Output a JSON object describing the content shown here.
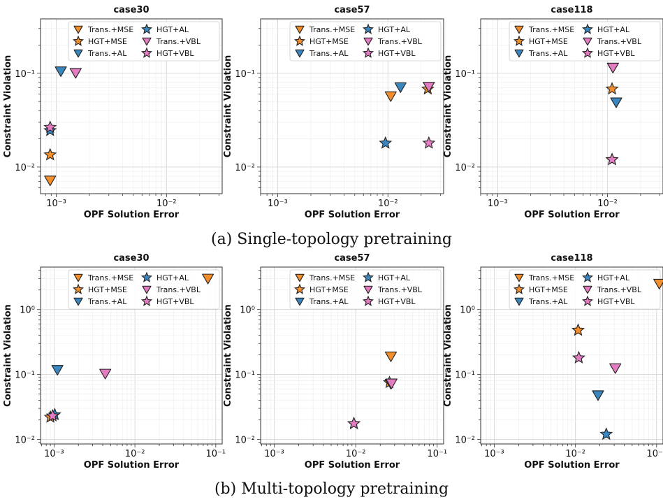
{
  "captions": {
    "a": "(a) Single-topology pretraining",
    "b": "(b) Multi-topology pretraining"
  },
  "styles": {
    "Trans.+MSE": {
      "color": "#f28e2b",
      "marker": "triangle-down"
    },
    "HGT+MSE": {
      "color": "#f28e2b",
      "marker": "star"
    },
    "Trans.+AL": {
      "color": "#3a87bf",
      "marker": "triangle-down"
    },
    "HGT+AL": {
      "color": "#3a87bf",
      "marker": "star"
    },
    "Trans.+VBL": {
      "color": "#e47cc2",
      "marker": "triangle-down"
    },
    "HGT+VBL": {
      "color": "#e47cc2",
      "marker": "star"
    }
  },
  "chart_data": [
    {
      "type": "scatter",
      "group": "a",
      "title": "case30",
      "xlabel": "OPF Solution Error",
      "ylabel": "Constraint Violation",
      "xscale": "log",
      "yscale": "log",
      "xlim": [
        0.00072,
        0.032
      ],
      "ylim": [
        0.0052,
        0.38
      ],
      "xticks": [
        {
          "v": 0.001,
          "label": "10⁻³"
        },
        {
          "v": 0.01,
          "label": "10⁻²"
        }
      ],
      "yticks": [
        {
          "v": 0.01,
          "label": "10⁻²"
        },
        {
          "v": 0.1,
          "label": "10⁻¹"
        }
      ],
      "legend_loc": "top-right",
      "grid": true,
      "series": [
        {
          "name": "Trans.+MSE",
          "x": 0.00088,
          "y": 0.0072
        },
        {
          "name": "HGT+MSE",
          "x": 0.00088,
          "y": 0.0135
        },
        {
          "name": "Trans.+AL",
          "x": 0.0011,
          "y": 0.105
        },
        {
          "name": "HGT+AL",
          "x": 0.00088,
          "y": 0.0245
        },
        {
          "name": "Trans.+VBL",
          "x": 0.0015,
          "y": 0.101
        },
        {
          "name": "HGT+VBL",
          "x": 0.00088,
          "y": 0.0265
        }
      ]
    },
    {
      "type": "scatter",
      "group": "a",
      "title": "case57",
      "xlabel": "OPF Solution Error",
      "ylabel": "Constraint Violation",
      "xscale": "log",
      "yscale": "log",
      "xlim": [
        0.0007,
        0.032
      ],
      "ylim": [
        0.0052,
        0.38
      ],
      "xticks": [
        {
          "v": 0.001,
          "label": "10⁻³"
        },
        {
          "v": 0.01,
          "label": "10⁻²"
        }
      ],
      "yticks": [
        {
          "v": 0.01,
          "label": "10⁻²"
        },
        {
          "v": 0.1,
          "label": "10⁻¹"
        }
      ],
      "legend_loc": "top-right",
      "grid": true,
      "series": [
        {
          "name": "Trans.+MSE",
          "x": 0.0106,
          "y": 0.057
        },
        {
          "name": "HGT+MSE",
          "x": 0.023,
          "y": 0.068
        },
        {
          "name": "Trans.+AL",
          "x": 0.013,
          "y": 0.071
        },
        {
          "name": "HGT+AL",
          "x": 0.0095,
          "y": 0.018
        },
        {
          "name": "Trans.+VBL",
          "x": 0.0235,
          "y": 0.072
        },
        {
          "name": "HGT+VBL",
          "x": 0.0235,
          "y": 0.018
        }
      ]
    },
    {
      "type": "scatter",
      "group": "a",
      "title": "case118",
      "xlabel": "OPF Solution Error",
      "ylabel": "Constraint Violation",
      "xscale": "log",
      "yscale": "log",
      "xlim": [
        0.0007,
        0.032
      ],
      "ylim": [
        0.0052,
        0.38
      ],
      "xticks": [
        {
          "v": 0.001,
          "label": "10⁻³"
        },
        {
          "v": 0.01,
          "label": "10⁻²"
        }
      ],
      "yticks": [
        {
          "v": 0.01,
          "label": "10⁻²"
        },
        {
          "v": 0.1,
          "label": "10⁻¹"
        }
      ],
      "legend_loc": "top-right",
      "grid": true,
      "series": [
        {
          "name": "Trans.+MSE",
          "x": 0.0112,
          "y": 0.115
        },
        {
          "name": "HGT+MSE",
          "x": 0.011,
          "y": 0.068
        },
        {
          "name": "Trans.+AL",
          "x": 0.012,
          "y": 0.049
        },
        {
          "name": "HGT+AL",
          "x": 0.011,
          "y": 0.012
        },
        {
          "name": "Trans.+VBL",
          "x": 0.0112,
          "y": 0.115
        },
        {
          "name": "HGT+VBL",
          "x": 0.011,
          "y": 0.012
        }
      ]
    },
    {
      "type": "scatter",
      "group": "b",
      "title": "case30",
      "xlabel": "OPF Solution Error",
      "ylabel": "Constraint Violation",
      "xscale": "log",
      "yscale": "log",
      "xlim": [
        0.00068,
        0.12
      ],
      "ylim": [
        0.0085,
        4.5
      ],
      "xticks": [
        {
          "v": 0.001,
          "label": "10⁻³"
        },
        {
          "v": 0.01,
          "label": "10⁻²"
        },
        {
          "v": 0.1,
          "label": "10⁻¹"
        }
      ],
      "yticks": [
        {
          "v": 0.01,
          "label": "10⁻²"
        },
        {
          "v": 0.1,
          "label": "10⁻¹"
        },
        {
          "v": 1,
          "label": "10⁰"
        }
      ],
      "legend_loc": "top-right",
      "grid": true,
      "series": [
        {
          "name": "Trans.+MSE",
          "x": 0.08,
          "y": 3.0
        },
        {
          "name": "HGT+MSE",
          "x": 0.0009,
          "y": 0.022
        },
        {
          "name": "Trans.+AL",
          "x": 0.0011,
          "y": 0.118
        },
        {
          "name": "HGT+AL",
          "x": 0.00102,
          "y": 0.024
        },
        {
          "name": "Trans.+VBL",
          "x": 0.0043,
          "y": 0.103
        },
        {
          "name": "HGT+VBL",
          "x": 0.00096,
          "y": 0.023
        }
      ]
    },
    {
      "type": "scatter",
      "group": "b",
      "title": "case57",
      "xlabel": "OPF Solution Error",
      "ylabel": "Constraint Violation",
      "xscale": "log",
      "yscale": "log",
      "xlim": [
        0.00068,
        0.12
      ],
      "ylim": [
        0.0085,
        4.5
      ],
      "xticks": [
        {
          "v": 0.001,
          "label": "10⁻³"
        },
        {
          "v": 0.01,
          "label": "10⁻²"
        },
        {
          "v": 0.1,
          "label": "10⁻¹"
        }
      ],
      "yticks": [
        {
          "v": 0.01,
          "label": "10⁻²"
        },
        {
          "v": 0.1,
          "label": "10⁻¹"
        },
        {
          "v": 1,
          "label": "10⁰"
        }
      ],
      "legend_loc": "top-right",
      "grid": true,
      "series": [
        {
          "name": "Trans.+MSE",
          "x": 0.027,
          "y": 0.19
        },
        {
          "name": "HGT+MSE",
          "x": 0.026,
          "y": 0.075
        },
        {
          "name": "Trans.+AL",
          "x": 0.027,
          "y": 0.072
        },
        {
          "name": "HGT+AL",
          "x": 0.0095,
          "y": 0.0175
        },
        {
          "name": "Trans.+VBL",
          "x": 0.0275,
          "y": 0.073
        },
        {
          "name": "HGT+VBL",
          "x": 0.0095,
          "y": 0.0175
        }
      ]
    },
    {
      "type": "scatter",
      "group": "b",
      "title": "case118",
      "xlabel": "OPF Solution Error",
      "ylabel": "Constraint Violation",
      "xscale": "log",
      "yscale": "log",
      "xlim": [
        0.00068,
        0.12
      ],
      "ylim": [
        0.0085,
        4.5
      ],
      "xticks": [
        {
          "v": 0.001,
          "label": "10⁻³"
        },
        {
          "v": 0.01,
          "label": "10⁻²"
        },
        {
          "v": 0.1,
          "label": "10⁻¹"
        }
      ],
      "yticks": [
        {
          "v": 0.01,
          "label": "10⁻²"
        },
        {
          "v": 0.1,
          "label": "10⁻¹"
        },
        {
          "v": 1,
          "label": "10⁰"
        }
      ],
      "legend_loc": "top-right",
      "grid": true,
      "series": [
        {
          "name": "Trans.+MSE",
          "x": 0.108,
          "y": 2.5
        },
        {
          "name": "HGT+MSE",
          "x": 0.0108,
          "y": 0.48
        },
        {
          "name": "Trans.+AL",
          "x": 0.019,
          "y": 0.048
        },
        {
          "name": "HGT+AL",
          "x": 0.024,
          "y": 0.012
        },
        {
          "name": "Trans.+VBL",
          "x": 0.031,
          "y": 0.125
        },
        {
          "name": "HGT+VBL",
          "x": 0.011,
          "y": 0.18
        }
      ]
    }
  ]
}
